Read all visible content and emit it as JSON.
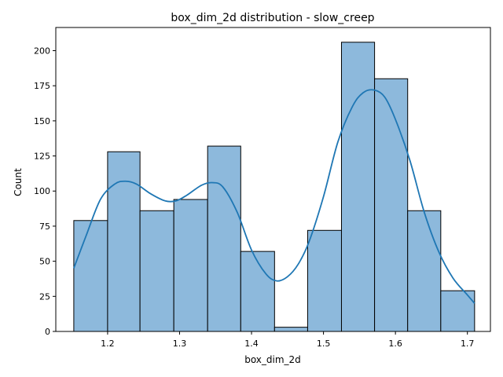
{
  "chart_data": {
    "type": "bar",
    "title": "box_dim_2d distribution - slow_creep",
    "xlabel": "box_dim_2d",
    "ylabel": "Count",
    "xlim": [
      1.128,
      1.732
    ],
    "ylim": [
      0,
      216.5
    ],
    "x_ticks": [
      1.2,
      1.3,
      1.4,
      1.5,
      1.6,
      1.7
    ],
    "y_ticks": [
      0,
      25,
      50,
      75,
      100,
      125,
      150,
      175,
      200
    ],
    "bins": [
      {
        "left": 1.153,
        "right": 1.2,
        "count": 79
      },
      {
        "left": 1.2,
        "right": 1.245,
        "count": 128
      },
      {
        "left": 1.245,
        "right": 1.292,
        "count": 86
      },
      {
        "left": 1.292,
        "right": 1.339,
        "count": 94
      },
      {
        "left": 1.339,
        "right": 1.385,
        "count": 132
      },
      {
        "left": 1.385,
        "right": 1.432,
        "count": 57
      },
      {
        "left": 1.432,
        "right": 1.478,
        "count": 3
      },
      {
        "left": 1.478,
        "right": 1.525,
        "count": 72
      },
      {
        "left": 1.525,
        "right": 1.571,
        "count": 206
      },
      {
        "left": 1.571,
        "right": 1.617,
        "count": 180
      },
      {
        "left": 1.617,
        "right": 1.663,
        "count": 86
      },
      {
        "left": 1.663,
        "right": 1.71,
        "count": 29
      }
    ],
    "kde": {
      "x": [
        1.153,
        1.17,
        1.19,
        1.21,
        1.225,
        1.24,
        1.26,
        1.28,
        1.295,
        1.31,
        1.33,
        1.345,
        1.36,
        1.38,
        1.4,
        1.42,
        1.435,
        1.45,
        1.465,
        1.48,
        1.5,
        1.52,
        1.54,
        1.555,
        1.57,
        1.585,
        1.6,
        1.62,
        1.64,
        1.66,
        1.68,
        1.7,
        1.71
      ],
      "y": [
        45,
        68,
        94,
        105,
        107,
        105,
        98,
        93,
        93,
        97,
        104,
        106,
        103,
        85,
        58,
        41,
        36,
        39,
        48,
        64,
        96,
        135,
        160,
        170,
        172,
        167,
        151,
        122,
        85,
        57,
        38,
        26,
        20
      ]
    },
    "colors": {
      "bar_fill": "#8db9dc",
      "bar_edge": "#000000",
      "kde_line": "#1f77b4"
    },
    "grid": false,
    "legend": "none"
  }
}
